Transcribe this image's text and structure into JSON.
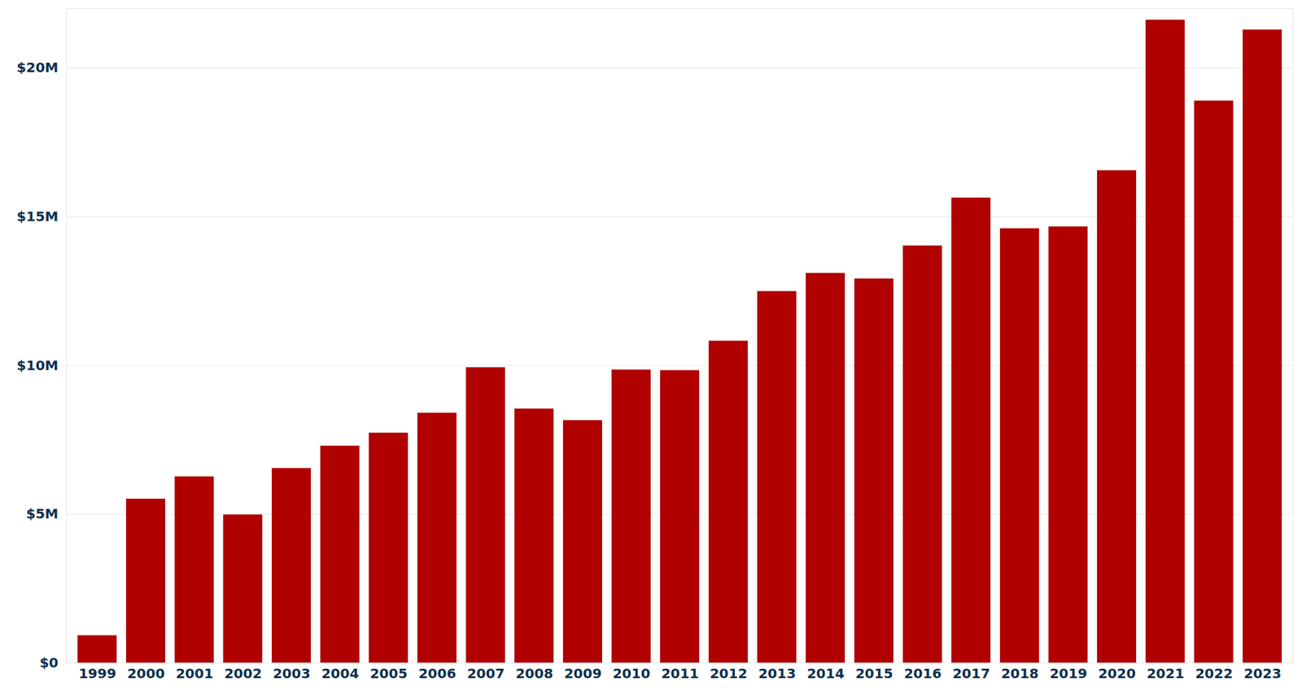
{
  "chart_data": {
    "type": "bar",
    "categories": [
      "1999",
      "2000",
      "2001",
      "2002",
      "2003",
      "2004",
      "2005",
      "2006",
      "2007",
      "2008",
      "2009",
      "2010",
      "2011",
      "2012",
      "2013",
      "2014",
      "2015",
      "2016",
      "2017",
      "2018",
      "2019",
      "2020",
      "2021",
      "2022",
      "2023"
    ],
    "values": [
      920000,
      5510000,
      6260000,
      4980000,
      6540000,
      7290000,
      7730000,
      8400000,
      9930000,
      8540000,
      8150000,
      9850000,
      9830000,
      10820000,
      12490000,
      13100000,
      12910000,
      14020000,
      15630000,
      14600000,
      14660000,
      16550000,
      21610000,
      18890000,
      21280000
    ],
    "color": "#b00000",
    "ylim": [
      0,
      22000000
    ],
    "yticks": [
      {
        "value": 0,
        "label": "$0"
      },
      {
        "value": 5000000,
        "label": "$5M"
      },
      {
        "value": 10000000,
        "label": "$10M"
      },
      {
        "value": 15000000,
        "label": "$15M"
      },
      {
        "value": 20000000,
        "label": "$20M"
      }
    ],
    "grid": true
  }
}
